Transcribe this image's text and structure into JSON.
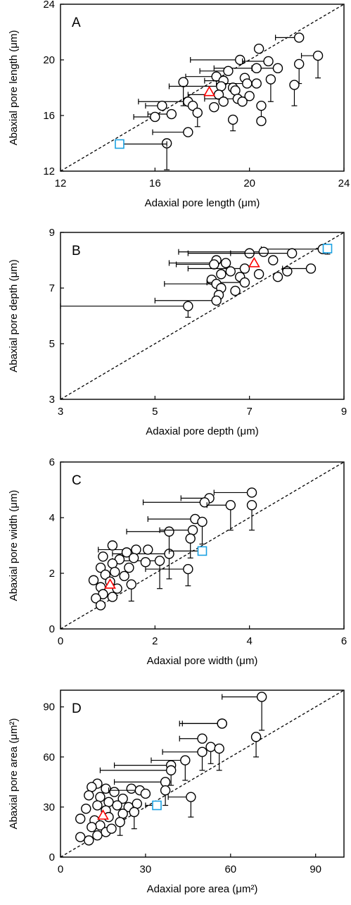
{
  "figure": {
    "colors": {
      "axis": "#000000",
      "point_fill": "#ffffff",
      "point_stroke": "#000000",
      "species_a": "#ff0000",
      "species_b": "#1ba1e2"
    }
  },
  "chart_data": [
    {
      "type": "scatter",
      "panel_label": "A",
      "xlabel": "Adaxial pore length (μm)",
      "ylabel": "Abaxial pore length (μm)",
      "xlim": [
        12,
        24
      ],
      "ylim": [
        12,
        24
      ],
      "xticks": [
        12,
        16,
        20,
        24
      ],
      "yticks": [
        12,
        16,
        20,
        24
      ],
      "reference_line": "1:1 dashed",
      "series": [
        {
          "marker": "circle",
          "points": [
            {
              "x": 22.1,
              "y": 21.6,
              "xerr_low": 1.0
            },
            {
              "x": 20.4,
              "y": 20.8
            },
            {
              "x": 22.9,
              "y": 20.3,
              "xerr_low": 0.7,
              "yerr_low": 1.6
            },
            {
              "x": 19.6,
              "y": 20.0,
              "xerr_low": 2.1
            },
            {
              "x": 20.8,
              "y": 19.9,
              "xerr_low": 1.1
            },
            {
              "x": 22.1,
              "y": 19.7,
              "yerr_low": 1.4
            },
            {
              "x": 21.2,
              "y": 19.4,
              "xerr_low": 1.1
            },
            {
              "x": 20.3,
              "y": 19.4,
              "xerr_low": 1.8
            },
            {
              "x": 19.1,
              "y": 19.2,
              "xerr_low": 1.2
            },
            {
              "x": 18.6,
              "y": 18.8,
              "xerr_low": 1.3
            },
            {
              "x": 18.9,
              "y": 18.5,
              "xerr_low": 0.8
            },
            {
              "x": 19.8,
              "y": 18.7
            },
            {
              "x": 19.9,
              "y": 18.3,
              "xerr_low": 1.3
            },
            {
              "x": 20.9,
              "y": 18.6,
              "yerr_low": 1.6
            },
            {
              "x": 17.2,
              "y": 18.4,
              "yerr_low": 1.7
            },
            {
              "x": 18.8,
              "y": 18.1,
              "xerr_low": 2.2
            },
            {
              "x": 19.3,
              "y": 18.0
            },
            {
              "x": 20.3,
              "y": 18.3
            },
            {
              "x": 21.9,
              "y": 18.2,
              "yerr_low": 1.5
            },
            {
              "x": 19.4,
              "y": 17.8
            },
            {
              "x": 18.7,
              "y": 17.5,
              "xerr_low": 1.3
            },
            {
              "x": 19.5,
              "y": 17.2,
              "xerr_low": 1.4
            },
            {
              "x": 20.0,
              "y": 17.4
            },
            {
              "x": 18.9,
              "y": 17.0
            },
            {
              "x": 19.7,
              "y": 17.0
            },
            {
              "x": 17.4,
              "y": 17.0,
              "xerr_low": 2.1
            },
            {
              "x": 16.3,
              "y": 16.7,
              "xerr_low": 0.7
            },
            {
              "x": 17.6,
              "y": 16.7
            },
            {
              "x": 18.5,
              "y": 16.6
            },
            {
              "x": 20.5,
              "y": 16.7,
              "yerr_low": 0.9
            },
            {
              "x": 17.8,
              "y": 16.2,
              "yerr_low": 1.0
            },
            {
              "x": 16.7,
              "y": 16.1,
              "xerr_low": 1.0
            },
            {
              "x": 16.0,
              "y": 15.9,
              "xerr_low": 0.9
            },
            {
              "x": 19.3,
              "y": 15.7,
              "yerr_low": 0.8
            },
            {
              "x": 20.5,
              "y": 15.6
            },
            {
              "x": 17.4,
              "y": 14.8,
              "xerr_low": 1.5
            },
            {
              "x": 16.5,
              "y": 14.0,
              "yerr_low": 1.9
            }
          ]
        },
        {
          "marker": "triangle",
          "color": "#ff0000",
          "points": [
            {
              "x": 18.3,
              "y": 17.7
            }
          ]
        },
        {
          "marker": "square",
          "color": "#1ba1e2",
          "points": [
            {
              "x": 14.5,
              "y": 13.95,
              "xerr_high": 2.0
            }
          ]
        }
      ]
    },
    {
      "type": "scatter",
      "panel_label": "B",
      "xlabel": "Adaxial pore depth (μm)",
      "ylabel": "Abaxial pore depth (μm)",
      "xlim": [
        3,
        9
      ],
      "ylim": [
        3,
        9
      ],
      "xticks": [
        3,
        5,
        7,
        9
      ],
      "yticks": [
        3,
        5,
        7,
        9
      ],
      "reference_line": "1:1 dashed",
      "series": [
        {
          "marker": "circle",
          "points": [
            {
              "x": 8.55,
              "y": 8.4,
              "xerr_low": 1.3
            },
            {
              "x": 7.3,
              "y": 8.3,
              "xerr_low": 1.8
            },
            {
              "x": 7.0,
              "y": 8.25,
              "xerr_low": 1.3
            },
            {
              "x": 7.9,
              "y": 8.25,
              "xerr_low": 1.3
            },
            {
              "x": 6.3,
              "y": 8.0
            },
            {
              "x": 6.5,
              "y": 7.9,
              "xerr_low": 1.2
            },
            {
              "x": 6.25,
              "y": 7.85,
              "xerr_low": 0.8
            },
            {
              "x": 7.5,
              "y": 8.0
            },
            {
              "x": 6.9,
              "y": 7.7,
              "xerr_low": 1.2
            },
            {
              "x": 7.8,
              "y": 7.6
            },
            {
              "x": 8.3,
              "y": 7.7,
              "xerr_low": 0.6
            },
            {
              "x": 6.6,
              "y": 7.6
            },
            {
              "x": 7.2,
              "y": 7.5
            },
            {
              "x": 6.4,
              "y": 7.5
            },
            {
              "x": 6.8,
              "y": 7.4
            },
            {
              "x": 7.6,
              "y": 7.4
            },
            {
              "x": 6.2,
              "y": 7.3
            },
            {
              "x": 6.9,
              "y": 7.2,
              "xerr_low": 0.8
            },
            {
              "x": 6.3,
              "y": 7.15,
              "xerr_low": 1.1
            },
            {
              "x": 6.4,
              "y": 7.0
            },
            {
              "x": 6.7,
              "y": 6.9
            },
            {
              "x": 6.35,
              "y": 6.75
            },
            {
              "x": 6.3,
              "y": 6.55,
              "xerr_low": 1.3
            },
            {
              "x": 5.7,
              "y": 6.35,
              "xerr_low": 2.7,
              "yerr_low": 0.4
            }
          ]
        },
        {
          "marker": "triangle",
          "color": "#ff0000",
          "points": [
            {
              "x": 7.1,
              "y": 7.9
            }
          ]
        },
        {
          "marker": "square",
          "color": "#1ba1e2",
          "points": [
            {
              "x": 8.65,
              "y": 8.42,
              "yerr_low": 0.2
            }
          ]
        }
      ]
    },
    {
      "type": "scatter",
      "panel_label": "C",
      "xlabel": "Adaxial pore width (μm)",
      "ylabel": "Abaxial pore width (μm)",
      "xlim": [
        0,
        6
      ],
      "ylim": [
        0,
        6
      ],
      "xticks": [
        0,
        2,
        4,
        6
      ],
      "yticks": [
        0,
        2,
        4,
        6
      ],
      "reference_line": "1:1 dashed",
      "series": [
        {
          "marker": "circle",
          "points": [
            {
              "x": 4.05,
              "y": 4.9,
              "xerr_low": 0.8
            },
            {
              "x": 3.15,
              "y": 4.7,
              "xerr_low": 0.6
            },
            {
              "x": 3.05,
              "y": 4.55,
              "xerr_low": 1.3
            },
            {
              "x": 3.6,
              "y": 4.45,
              "xerr_low": 0.5,
              "yerr_low": 0.9
            },
            {
              "x": 4.05,
              "y": 4.45,
              "yerr_low": 0.9
            },
            {
              "x": 2.85,
              "y": 3.95,
              "xerr_low": 1.0
            },
            {
              "x": 3.0,
              "y": 3.85,
              "yerr_low": 0.8
            },
            {
              "x": 2.3,
              "y": 3.5,
              "xerr_low": 0.9,
              "yerr_low": 0.8
            },
            {
              "x": 2.8,
              "y": 3.55,
              "xerr_low": 0.7
            },
            {
              "x": 2.75,
              "y": 3.25,
              "yerr_low": 0.7
            },
            {
              "x": 2.3,
              "y": 2.7,
              "xerr_low": 1.2,
              "yerr_low": 0.9
            },
            {
              "x": 2.1,
              "y": 2.45,
              "xerr_low": 1.0,
              "yerr_low": 1.0
            },
            {
              "x": 1.6,
              "y": 2.85,
              "xerr_low": 0.8
            },
            {
              "x": 1.85,
              "y": 2.85
            },
            {
              "x": 1.4,
              "y": 2.75
            },
            {
              "x": 1.1,
              "y": 3.0
            },
            {
              "x": 0.9,
              "y": 2.6
            },
            {
              "x": 1.25,
              "y": 2.5
            },
            {
              "x": 1.55,
              "y": 2.55
            },
            {
              "x": 1.1,
              "y": 2.35
            },
            {
              "x": 0.85,
              "y": 2.2
            },
            {
              "x": 1.45,
              "y": 2.2
            },
            {
              "x": 1.8,
              "y": 2.4
            },
            {
              "x": 1.15,
              "y": 2.05
            },
            {
              "x": 0.95,
              "y": 1.95
            },
            {
              "x": 1.35,
              "y": 1.9
            },
            {
              "x": 0.7,
              "y": 1.75
            },
            {
              "x": 1.05,
              "y": 1.7
            },
            {
              "x": 1.5,
              "y": 1.6,
              "yerr_low": 0.6
            },
            {
              "x": 0.85,
              "y": 1.5
            },
            {
              "x": 1.2,
              "y": 1.45
            },
            {
              "x": 0.9,
              "y": 1.25
            },
            {
              "x": 1.1,
              "y": 1.15
            },
            {
              "x": 0.75,
              "y": 1.1
            },
            {
              "x": 0.85,
              "y": 0.85
            },
            {
              "x": 2.7,
              "y": 2.15,
              "xerr_low": 0.9,
              "yerr_low": 0.6
            }
          ]
        },
        {
          "marker": "triangle",
          "color": "#ff0000",
          "points": [
            {
              "x": 1.05,
              "y": 1.6
            }
          ]
        },
        {
          "marker": "square",
          "color": "#1ba1e2",
          "points": [
            {
              "x": 3.0,
              "y": 2.8,
              "xerr_low": 0.7
            }
          ]
        }
      ]
    },
    {
      "type": "scatter",
      "panel_label": "D",
      "xlabel": "Adaxial pore area (μm²)",
      "ylabel": "Abaxial pore area (μm²)",
      "xlim": [
        0,
        100
      ],
      "ylim": [
        0,
        100
      ],
      "xticks": [
        0,
        30,
        60,
        90
      ],
      "yticks": [
        0,
        30,
        60,
        90
      ],
      "reference_line": "1:1 dashed",
      "series": [
        {
          "marker": "circle",
          "points": [
            {
              "x": 71,
              "y": 96,
              "xerr_low": 14,
              "yerr_low": 20
            },
            {
              "x": 57,
              "y": 80,
              "xerr_low": 14
            },
            {
              "x": 57,
              "y": 80,
              "xerr_low": 15
            },
            {
              "x": 69,
              "y": 72,
              "yerr_low": 12
            },
            {
              "x": 50,
              "y": 71,
              "xerr_low": 8
            },
            {
              "x": 53,
              "y": 66,
              "yerr_low": 10
            },
            {
              "x": 56,
              "y": 65,
              "yerr_low": 13
            },
            {
              "x": 50,
              "y": 63,
              "xerr_low": 14,
              "yerr_low": 11
            },
            {
              "x": 44,
              "y": 58,
              "xerr_low": 12,
              "yerr_low": 12
            },
            {
              "x": 39,
              "y": 55,
              "xerr_low": 20,
              "yerr_low": 12
            },
            {
              "x": 39,
              "y": 52,
              "xerr_low": 25
            },
            {
              "x": 37,
              "y": 45,
              "xerr_low": 18
            },
            {
              "x": 37,
              "y": 40,
              "yerr_low": 9
            },
            {
              "x": 46,
              "y": 36,
              "xerr_low": 8,
              "yerr_low": 12
            },
            {
              "x": 13,
              "y": 44
            },
            {
              "x": 11,
              "y": 42
            },
            {
              "x": 16,
              "y": 41
            },
            {
              "x": 19,
              "y": 39
            },
            {
              "x": 10,
              "y": 37
            },
            {
              "x": 14,
              "y": 36
            },
            {
              "x": 25,
              "y": 41
            },
            {
              "x": 28,
              "y": 40,
              "xerr_low": 11
            },
            {
              "x": 30,
              "y": 38
            },
            {
              "x": 22,
              "y": 35
            },
            {
              "x": 17,
              "y": 33
            },
            {
              "x": 13,
              "y": 31
            },
            {
              "x": 20,
              "y": 31
            },
            {
              "x": 24,
              "y": 30
            },
            {
              "x": 27,
              "y": 32
            },
            {
              "x": 9,
              "y": 29
            },
            {
              "x": 16,
              "y": 28
            },
            {
              "x": 26,
              "y": 27,
              "yerr_low": 10
            },
            {
              "x": 22,
              "y": 26
            },
            {
              "x": 17,
              "y": 24
            },
            {
              "x": 7,
              "y": 23
            },
            {
              "x": 12,
              "y": 22
            },
            {
              "x": 14,
              "y": 19
            },
            {
              "x": 11,
              "y": 18
            },
            {
              "x": 16,
              "y": 15
            },
            {
              "x": 13,
              "y": 13
            },
            {
              "x": 7,
              "y": 12
            },
            {
              "x": 10,
              "y": 10
            },
            {
              "x": 21,
              "y": 21,
              "yerr_low": 8
            },
            {
              "x": 18,
              "y": 17
            }
          ]
        },
        {
          "marker": "triangle",
          "color": "#ff0000",
          "points": [
            {
              "x": 15,
              "y": 25
            }
          ]
        },
        {
          "marker": "square",
          "color": "#1ba1e2",
          "points": [
            {
              "x": 34,
              "y": 31,
              "xerr_low": 4
            }
          ]
        }
      ]
    }
  ]
}
